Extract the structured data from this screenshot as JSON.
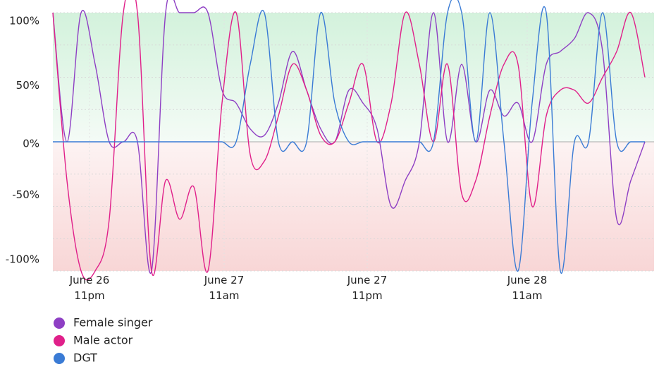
{
  "chart_data": {
    "type": "line",
    "x": [
      0,
      1,
      2,
      3,
      4,
      5,
      6,
      7,
      8,
      9,
      10,
      11,
      12,
      13,
      14,
      15,
      16,
      17,
      18,
      19,
      20,
      21,
      22,
      23,
      24,
      25,
      26,
      27,
      28,
      29,
      30,
      31,
      32,
      33,
      34,
      35,
      36,
      37,
      38,
      39,
      40,
      41,
      42
    ],
    "xlim": [
      0,
      42.65
    ],
    "xticks": [
      {
        "value": 2.6,
        "label": "June 26\n11pm"
      },
      {
        "value": 12.15,
        "label": "June 27\n11am"
      },
      {
        "value": 22.3,
        "label": "June 27\n11pm"
      },
      {
        "value": 33.65,
        "label": "June 28\n11am"
      }
    ],
    "ylim": [
      -100,
      100
    ],
    "yticks": [
      {
        "value": 100,
        "label": "100%"
      },
      {
        "value": 50,
        "label": "50%"
      },
      {
        "value": 0,
        "label": "0%"
      },
      {
        "value": -50,
        "label": "-50%"
      },
      {
        "value": -100,
        "label": "-100%"
      }
    ],
    "yminor": [
      75,
      25,
      -25,
      -75
    ],
    "grid": true,
    "series": [
      {
        "name": "Female singer",
        "color": "#8e3fc4",
        "values": [
          100,
          0,
          100,
          60,
          0,
          0,
          0,
          -100,
          100,
          100,
          100,
          100,
          40,
          30,
          10,
          5,
          30,
          70,
          40,
          10,
          0,
          40,
          30,
          10,
          -50,
          -30,
          0,
          100,
          0,
          60,
          0,
          40,
          20,
          30,
          0,
          60,
          70,
          80,
          100,
          70,
          -60,
          -30,
          0
        ]
      },
      {
        "name": "Male actor",
        "color": "#e0208a",
        "values": [
          100,
          -30,
          -100,
          -100,
          -60,
          100,
          100,
          -100,
          -30,
          -60,
          -35,
          -100,
          30,
          100,
          -10,
          -15,
          20,
          60,
          40,
          5,
          0,
          30,
          60,
          0,
          30,
          100,
          60,
          0,
          60,
          -40,
          -30,
          20,
          60,
          60,
          -50,
          20,
          40,
          40,
          30,
          50,
          70,
          100,
          50
        ]
      },
      {
        "name": "DGT",
        "color": "#3a7bd5",
        "values": [
          0,
          0,
          0,
          0,
          0,
          0,
          0,
          0,
          0,
          0,
          0,
          0,
          0,
          0,
          60,
          100,
          0,
          0,
          0,
          100,
          30,
          0,
          0,
          0,
          0,
          0,
          0,
          0,
          100,
          100,
          0,
          100,
          0,
          -100,
          30,
          100,
          -100,
          0,
          0,
          100,
          0,
          0,
          0
        ]
      }
    ]
  }
}
